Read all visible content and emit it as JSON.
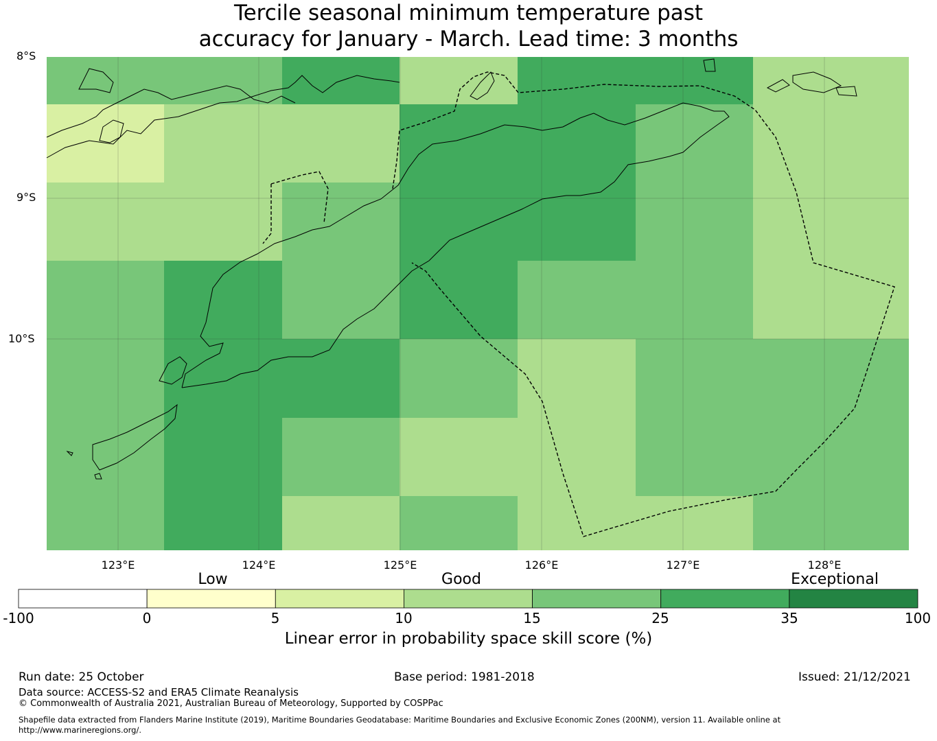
{
  "title": {
    "line1": "Tercile seasonal minimum temperature past",
    "line2": "accuracy for January - March. Lead time: 3 months"
  },
  "axes": {
    "lat_labels": [
      "8°S",
      "9°S",
      "10°S"
    ],
    "lon_labels": [
      "123°E",
      "124°E",
      "125°E",
      "126°E",
      "127°E",
      "128°E"
    ]
  },
  "colorbar": {
    "categories": [
      "Low",
      "Good",
      "Exceptional"
    ],
    "ticks": [
      "-100",
      "0",
      "5",
      "10",
      "15",
      "25",
      "35",
      "100"
    ],
    "colors": [
      "#ffffff",
      "#ffffcc",
      "#d9f0a3",
      "#addd8e",
      "#78c679",
      "#41ab5d",
      "#238443"
    ],
    "label": "Linear error in probability space skill score (%)"
  },
  "footer": {
    "run_date": "Run date: 25 October",
    "base_period": "Base period: 1981-2018",
    "issued": "Issued: 21/12/2021",
    "data_source": "Data source: ACCESS-S2 and ERA5 Climate Reanalysis",
    "copyright": "© Commonwealth of Australia 2021, Australian Bureau of Meteorology, Supported by COSPPac",
    "shapefile_line1": "Shapefile data extracted from Flanders Marine Institute (2019), Maritime Boundaries Geodatabase: Maritime Boundaries and Exclusive Economic Zones (200NM), version 11. Available online at",
    "shapefile_line2": "http://www.marineregions.org/."
  },
  "map": {
    "lon_range": [
      122.5,
      128.6
    ],
    "lat_range": [
      -8.0,
      -11.5
    ],
    "legend_colors": {
      "c3": "#d9f0a3",
      "c4": "#addd8e",
      "c5": "#78c679",
      "c6": "#41ab5d"
    },
    "grid_rows": [
      [
        "c5",
        "c5",
        "c6",
        "c4",
        "c6",
        "c6",
        "c4"
      ],
      [
        "c3",
        "c4",
        "c4",
        "c6",
        "c6",
        "c5",
        "c4"
      ],
      [
        "c4",
        "c4",
        "c5",
        "c6",
        "c6",
        "c5",
        "c4"
      ],
      [
        "c5",
        "c6",
        "c5",
        "c6",
        "c5",
        "c5",
        "c4"
      ],
      [
        "c5",
        "c6",
        "c6",
        "c5",
        "c4",
        "c5",
        "c5"
      ],
      [
        "c5",
        "c6",
        "c5",
        "c4",
        "c4",
        "c5",
        "c5"
      ],
      [
        "c5",
        "c6",
        "c4",
        "c5",
        "c4",
        "c4",
        "c5"
      ]
    ]
  }
}
